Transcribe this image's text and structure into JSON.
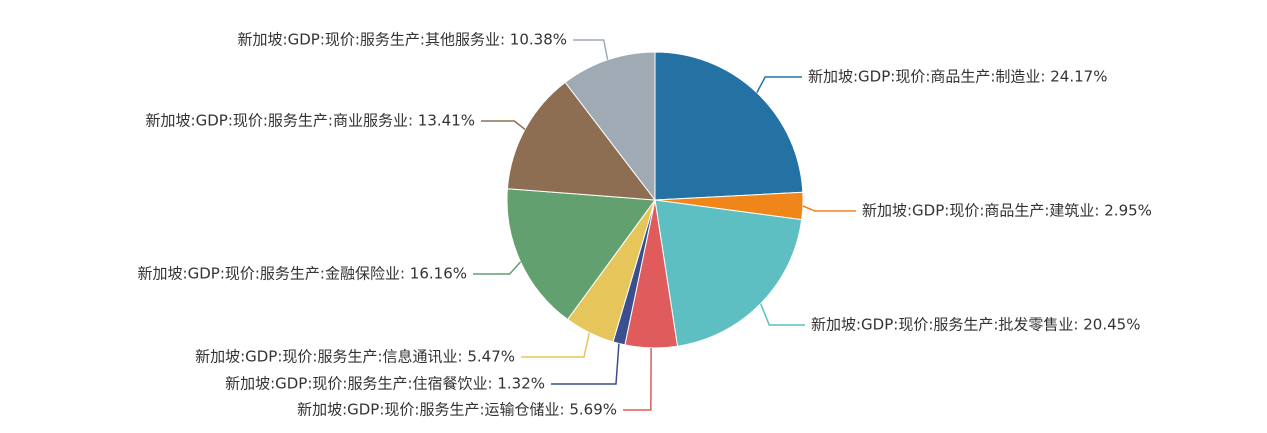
{
  "chart_data": {
    "type": "pie",
    "values": [
      24.17,
      2.95,
      20.45,
      5.69,
      1.32,
      5.47,
      16.16,
      13.41,
      10.38
    ],
    "value_labels": [
      "新加坡:GDP:现价:商品生产:制造业: 24.17%",
      "新加坡:GDP:现价:商品生产:建筑业: 2.95%",
      "新加坡:GDP:现价:服务生产:批发零售业: 20.45%",
      "新加坡:GDP:现价:服务生产:运输仓储业: 5.69%",
      "新加坡:GDP:现价:服务生产:住宿餐饮业: 1.32%",
      "新加坡:GDP:现价:服务生产:信息通讯业: 5.47%",
      "新加坡:GDP:现价:服务生产:金融保险业: 16.16%",
      "新加坡:GDP:现价:服务生产:商业服务业: 13.41%",
      "新加坡:GDP:现价:服务生产:其他服务业: 10.38%"
    ],
    "colors": [
      "#2372a3",
      "#f0861a",
      "#5ebfc2",
      "#e05b5c",
      "#3b4f8e",
      "#e6c65a",
      "#62a070",
      "#8e6e52",
      "#a0aab5"
    ]
  }
}
